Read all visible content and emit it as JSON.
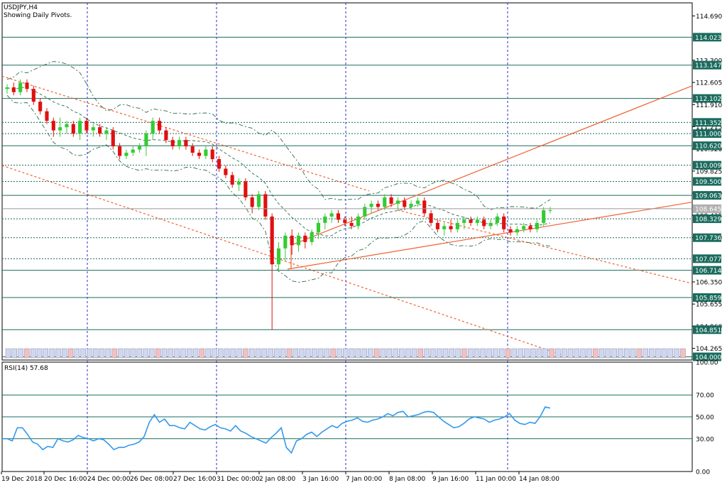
{
  "header": {
    "symbol": "USDJPY,H4",
    "subtitle": "Showing Daily Pivots."
  },
  "colors": {
    "bull": "#33cc33",
    "bear": "#e01010",
    "grid": "#1a6b5e",
    "pivot": "#1a6b5e",
    "separator": "#2a2ad0",
    "trend": "#f06030",
    "band": "#2a6b4a",
    "rsi": "#3399ee",
    "tag_bg": "#1a6b5e",
    "price_tag_bg": "#b0b0b0"
  },
  "chart_data": [
    {
      "type": "candlestick",
      "symbol": "USDJPY",
      "timeframe": "H4",
      "ylim": [
        103.9,
        115.1
      ],
      "price_axis_labels": [
        "114.690",
        "113.300",
        "112.605",
        "111.910",
        "111.215",
        "110.520",
        "109.825",
        "109.130",
        "108.435",
        "107.740",
        "106.350",
        "105.655",
        "104.960",
        "104.265"
      ],
      "pivot_levels": [
        "114.023",
        "113.147",
        "112.102",
        "111.352",
        "111.000",
        "110.620",
        "110.009",
        "109.500",
        "109.063",
        "108.329",
        "107.736",
        "107.077",
        "106.714",
        "105.859",
        "104.851",
        "104.000"
      ],
      "current_price": "108.645",
      "time_labels": [
        "19 Dec 2018",
        "20 Dec 16:00",
        "24 Dec 00:00",
        "26 Dec 08:00",
        "27 Dec 16:00",
        "31 Dec 00:00",
        "2 Jan 08:00",
        "3 Jan 16:00",
        "7 Jan 00:00",
        "8 Jan 08:00",
        "9 Jan 16:00",
        "11 Jan 00:00",
        "14 Jan 08:00"
      ],
      "ohlc": [
        [
          112.4,
          112.55,
          112.25,
          112.45
        ],
        [
          112.45,
          112.6,
          112.2,
          112.3
        ],
        [
          112.3,
          112.7,
          112.2,
          112.6
        ],
        [
          112.6,
          112.7,
          112.3,
          112.4
        ],
        [
          112.4,
          112.5,
          111.9,
          112.0
        ],
        [
          112.0,
          112.1,
          111.6,
          111.7
        ],
        [
          111.7,
          111.8,
          111.3,
          111.4
        ],
        [
          111.4,
          111.5,
          110.9,
          111.1
        ],
        [
          111.1,
          111.5,
          110.9,
          111.2
        ],
        [
          111.2,
          111.4,
          111.0,
          111.3
        ],
        [
          111.3,
          111.4,
          110.9,
          111.0
        ],
        [
          111.0,
          111.5,
          110.8,
          111.4
        ],
        [
          111.4,
          111.5,
          111.0,
          111.1
        ],
        [
          111.1,
          111.3,
          110.9,
          111.2
        ],
        [
          111.2,
          111.3,
          110.9,
          111.0
        ],
        [
          111.0,
          111.2,
          110.8,
          111.1
        ],
        [
          111.1,
          111.2,
          110.5,
          110.6
        ],
        [
          110.6,
          110.7,
          110.2,
          110.3
        ],
        [
          110.3,
          110.5,
          110.2,
          110.4
        ],
        [
          110.4,
          110.6,
          110.3,
          110.5
        ],
        [
          110.5,
          110.7,
          110.4,
          110.6
        ],
        [
          110.6,
          111.1,
          110.3,
          111.0
        ],
        [
          111.0,
          111.5,
          110.8,
          111.4
        ],
        [
          111.4,
          111.5,
          111.0,
          111.1
        ],
        [
          111.1,
          111.2,
          110.7,
          110.8
        ],
        [
          110.8,
          110.9,
          110.5,
          110.6
        ],
        [
          110.6,
          110.9,
          110.5,
          110.8
        ],
        [
          110.8,
          110.9,
          110.5,
          110.6
        ],
        [
          110.6,
          110.7,
          110.3,
          110.4
        ],
        [
          110.4,
          110.5,
          110.2,
          110.3
        ],
        [
          110.3,
          110.6,
          110.2,
          110.5
        ],
        [
          110.5,
          110.6,
          110.1,
          110.2
        ],
        [
          110.2,
          110.3,
          109.8,
          109.9
        ],
        [
          109.9,
          110.0,
          109.6,
          109.7
        ],
        [
          109.7,
          109.8,
          109.3,
          109.4
        ],
        [
          109.4,
          109.6,
          109.2,
          109.5
        ],
        [
          109.5,
          109.6,
          108.9,
          109.0
        ],
        [
          109.0,
          109.1,
          108.5,
          108.7
        ],
        [
          108.7,
          109.2,
          108.6,
          109.1
        ],
        [
          109.1,
          109.2,
          108.3,
          108.4
        ],
        [
          108.4,
          108.5,
          104.85,
          106.9
        ],
        [
          106.9,
          107.6,
          106.7,
          107.4
        ],
        [
          107.4,
          107.9,
          107.0,
          107.8
        ],
        [
          107.8,
          108.0,
          107.2,
          107.5
        ],
        [
          107.5,
          107.9,
          107.3,
          107.8
        ],
        [
          107.8,
          107.9,
          107.4,
          107.6
        ],
        [
          107.6,
          108.0,
          107.5,
          107.9
        ],
        [
          107.9,
          108.3,
          107.7,
          108.2
        ],
        [
          108.2,
          108.5,
          108.0,
          108.4
        ],
        [
          108.4,
          108.6,
          108.2,
          108.5
        ],
        [
          108.5,
          108.6,
          108.2,
          108.3
        ],
        [
          108.3,
          108.4,
          108.1,
          108.2
        ],
        [
          108.2,
          108.4,
          108.0,
          108.1
        ],
        [
          108.1,
          108.5,
          108.0,
          108.4
        ],
        [
          108.4,
          108.8,
          108.3,
          108.7
        ],
        [
          108.7,
          108.9,
          108.5,
          108.8
        ],
        [
          108.8,
          108.9,
          108.6,
          108.7
        ],
        [
          108.7,
          109.1,
          108.6,
          109.0
        ],
        [
          109.0,
          109.1,
          108.7,
          108.8
        ],
        [
          108.8,
          109.0,
          108.6,
          108.9
        ],
        [
          108.9,
          109.0,
          108.6,
          108.7
        ],
        [
          108.7,
          108.9,
          108.6,
          108.8
        ],
        [
          108.8,
          109.0,
          108.7,
          108.9
        ],
        [
          108.9,
          109.0,
          108.4,
          108.5
        ],
        [
          108.5,
          108.6,
          108.1,
          108.2
        ],
        [
          108.2,
          108.3,
          107.9,
          108.0
        ],
        [
          108.0,
          108.2,
          107.8,
          108.1
        ],
        [
          108.1,
          108.3,
          107.9,
          108.0
        ],
        [
          108.0,
          108.3,
          107.9,
          108.2
        ],
        [
          108.2,
          108.4,
          108.0,
          108.3
        ],
        [
          108.3,
          108.4,
          108.1,
          108.2
        ],
        [
          108.2,
          108.4,
          108.1,
          108.3
        ],
        [
          108.3,
          108.4,
          108.0,
          108.1
        ],
        [
          108.1,
          108.3,
          108.0,
          108.2
        ],
        [
          108.2,
          108.5,
          108.1,
          108.4
        ],
        [
          108.4,
          108.5,
          107.9,
          108.0
        ],
        [
          108.0,
          108.1,
          107.8,
          107.9
        ],
        [
          107.9,
          108.1,
          107.8,
          108.0
        ],
        [
          108.0,
          108.2,
          107.9,
          108.1
        ],
        [
          108.1,
          108.2,
          107.9,
          108.0
        ],
        [
          108.0,
          108.3,
          107.9,
          108.2
        ],
        [
          108.2,
          108.7,
          108.1,
          108.6
        ],
        [
          108.6,
          108.7,
          108.5,
          108.6
        ]
      ]
    },
    {
      "type": "line",
      "title": "RSI(14) 57.68",
      "ylim": [
        0,
        100
      ],
      "y_axis_labels": [
        "100.00",
        "70.00",
        "50.00",
        "30.00",
        "0.00"
      ],
      "levels": [
        70,
        50,
        30
      ],
      "values": [
        30,
        30,
        28,
        40,
        40,
        34,
        27,
        25,
        20,
        23,
        22,
        30,
        28,
        27,
        29,
        33,
        31,
        30,
        28,
        30,
        29,
        25,
        20,
        22,
        22,
        24,
        25,
        27,
        32,
        45,
        52,
        45,
        48,
        42,
        42,
        40,
        39,
        45,
        42,
        39,
        38,
        41,
        43,
        40,
        39,
        37,
        42,
        37,
        35,
        32,
        30,
        28,
        26,
        31,
        35,
        40,
        22,
        17,
        28,
        30,
        34,
        36,
        32,
        36,
        39,
        42,
        40,
        44,
        46,
        47,
        49,
        46,
        45,
        47,
        48,
        50,
        53,
        51,
        54,
        55,
        50,
        51,
        52,
        54,
        55,
        54,
        50,
        46,
        43,
        40,
        41,
        44,
        48,
        50,
        49,
        48,
        45,
        47,
        48,
        50,
        53,
        47,
        44,
        43,
        45,
        44,
        50,
        59,
        58
      ]
    }
  ]
}
